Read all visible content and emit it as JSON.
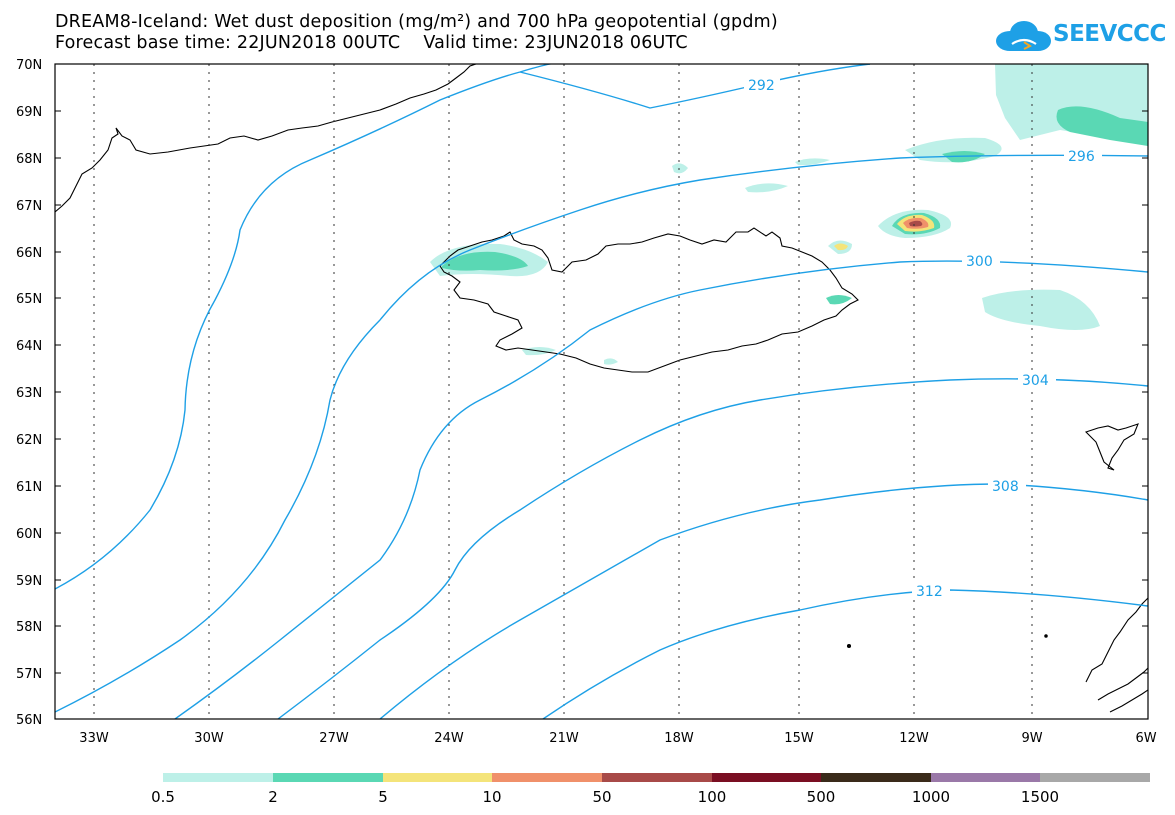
{
  "header": {
    "title_line1": "DREAM8-Iceland: Wet dust deposition (mg/m²) and 700 hPa geopotential (gpdm)",
    "title_line2": "Forecast base time: 22JUN2018 00UTC    Valid time: 23JUN2018 06UTC"
  },
  "logo": {
    "text": "SEEVCCC",
    "icon": "cloud-icon",
    "color": "#1ea0e6"
  },
  "map": {
    "lat_labels": [
      "70N",
      "69N",
      "68N",
      "67N",
      "66N",
      "65N",
      "64N",
      "63N",
      "62N",
      "61N",
      "60N",
      "59N",
      "58N",
      "57N",
      "56N"
    ],
    "lon_labels": [
      "33W",
      "30W",
      "27W",
      "24W",
      "21W",
      "18W",
      "15W",
      "12W",
      "9W",
      "6W"
    ],
    "contour_color": "#1ea0e6",
    "contour_labels": [
      "292",
      "296",
      "300",
      "304",
      "308",
      "312"
    ]
  },
  "legend": {
    "colors": [
      "#bdf0e8",
      "#5ad8b4",
      "#f4e47a",
      "#f0906a",
      "#a84a48",
      "#7a0e22",
      "#3a2a1a",
      "#9a78a8",
      "#a8a8a8"
    ],
    "labels": [
      "0.5",
      "2",
      "5",
      "10",
      "50",
      "100",
      "500",
      "1000",
      "1500"
    ]
  }
}
